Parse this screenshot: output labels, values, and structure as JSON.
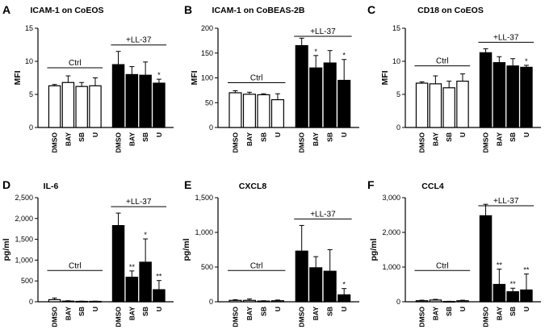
{
  "chart_data": [
    {
      "type": "bar",
      "panel_label": "A",
      "title": "ICAM-1 on CoEOS",
      "ylabel": "MFI",
      "ylim": [
        0,
        15
      ],
      "yticks": [
        "0",
        "5",
        "10",
        "15"
      ],
      "categories": [
        "DMSO",
        "BAY",
        "SB",
        "U",
        "DMSO",
        "BAY",
        "SB",
        "U"
      ],
      "groups": [
        {
          "name": "Ctrl",
          "start": 0,
          "end": 3,
          "fill": "#ffffff"
        },
        {
          "name": "+LL-37",
          "start": 4,
          "end": 7,
          "fill": "#000000"
        }
      ],
      "values": [
        6.3,
        6.8,
        6.2,
        6.3,
        9.5,
        8.0,
        7.9,
        6.7
      ],
      "errors": [
        0.2,
        1.0,
        0.6,
        1.2,
        2.0,
        1.2,
        2.0,
        0.6
      ],
      "significance": [
        "",
        "",
        "",
        "",
        "",
        "",
        "",
        "*"
      ]
    },
    {
      "type": "bar",
      "panel_label": "B",
      "title": "ICAM-1 on CoBEAS-2B",
      "ylabel": "MFI",
      "ylim": [
        0,
        200
      ],
      "yticks": [
        "0",
        "50",
        "100",
        "150",
        "200"
      ],
      "categories": [
        "DMSO",
        "BAY",
        "SB",
        "U",
        "DMSO",
        "BAY",
        "SB",
        "U"
      ],
      "groups": [
        {
          "name": "Ctrl",
          "start": 0,
          "end": 3,
          "fill": "#ffffff"
        },
        {
          "name": "+LL-37",
          "start": 4,
          "end": 7,
          "fill": "#000000"
        }
      ],
      "values": [
        70,
        67,
        66,
        56,
        165,
        120,
        130,
        95
      ],
      "errors": [
        4,
        4,
        2,
        12,
        15,
        25,
        25,
        42
      ],
      "significance": [
        "",
        "",
        "",
        "",
        "",
        "*",
        "",
        "*"
      ]
    },
    {
      "type": "bar",
      "panel_label": "C",
      "title": "CD18 on CoEOS",
      "ylabel": "MFI",
      "ylim": [
        0,
        15
      ],
      "yticks": [
        "0",
        "5",
        "10",
        "15"
      ],
      "categories": [
        "DMSO",
        "BAY",
        "SB",
        "U",
        "DMSO",
        "BAY",
        "SB",
        "U"
      ],
      "groups": [
        {
          "name": "Ctrl",
          "start": 0,
          "end": 3,
          "fill": "#ffffff"
        },
        {
          "name": "+LL-37",
          "start": 4,
          "end": 7,
          "fill": "#000000"
        }
      ],
      "values": [
        6.7,
        6.6,
        6.0,
        7.0,
        11.3,
        9.8,
        9.3,
        9.1
      ],
      "errors": [
        0.2,
        1.2,
        1.0,
        1.1,
        0.6,
        0.9,
        1.1,
        0.3
      ],
      "significance": [
        "",
        "",
        "",
        "",
        "",
        "",
        "",
        "*"
      ]
    },
    {
      "type": "bar",
      "panel_label": "D",
      "title": "IL-6",
      "ylabel": "pg/ml",
      "ylim": [
        0,
        2500
      ],
      "yticks": [
        "0",
        "500",
        "1,000",
        "1,500",
        "2,000",
        "2,500"
      ],
      "categories": [
        "DMSO",
        "BAY",
        "SB",
        "U",
        "DMSO",
        "BAY",
        "SB",
        "U"
      ],
      "groups": [
        {
          "name": "Ctrl",
          "start": 0,
          "end": 3,
          "fill": "#ffffff"
        },
        {
          "name": "+LL-37",
          "start": 4,
          "end": 7,
          "fill": "#000000"
        }
      ],
      "values": [
        50,
        15,
        10,
        10,
        1830,
        590,
        950,
        290
      ],
      "errors": [
        40,
        10,
        5,
        5,
        300,
        150,
        560,
        220
      ],
      "significance": [
        "",
        "",
        "",
        "",
        "",
        "**",
        "*",
        "**"
      ]
    },
    {
      "type": "bar",
      "panel_label": "E",
      "title": "CXCL8",
      "ylabel": "pg/ml",
      "ylim": [
        0,
        1500
      ],
      "yticks": [
        "0",
        "500",
        "1,000",
        "1,500"
      ],
      "categories": [
        "DMSO",
        "BAY",
        "SB",
        "U",
        "DMSO",
        "BAY",
        "SB",
        "U"
      ],
      "groups": [
        {
          "name": "Ctrl",
          "start": 0,
          "end": 3,
          "fill": "#ffffff"
        },
        {
          "name": "+LL-37",
          "start": 4,
          "end": 7,
          "fill": "#000000"
        }
      ],
      "values": [
        20,
        20,
        10,
        15,
        730,
        490,
        440,
        100
      ],
      "errors": [
        10,
        20,
        5,
        10,
        370,
        160,
        310,
        90
      ],
      "significance": [
        "",
        "",
        "",
        "",
        "",
        "",
        "",
        "*"
      ]
    },
    {
      "type": "bar",
      "panel_label": "F",
      "title": "CCL4",
      "ylabel": "pg/ml",
      "ylim": [
        0,
        3000
      ],
      "yticks": [
        "0",
        "1,000",
        "2,000",
        "3,000"
      ],
      "categories": [
        "DMSO",
        "BAY",
        "SB",
        "U",
        "DMSO",
        "BAY",
        "SB",
        "U"
      ],
      "groups": [
        {
          "name": "Ctrl",
          "start": 0,
          "end": 3,
          "fill": "#ffffff"
        },
        {
          "name": "+LL-37",
          "start": 4,
          "end": 7,
          "fill": "#000000"
        }
      ],
      "values": [
        30,
        50,
        10,
        30,
        2480,
        500,
        290,
        340
      ],
      "errors": [
        15,
        20,
        5,
        15,
        330,
        440,
        100,
        460
      ],
      "significance": [
        "",
        "",
        "",
        "",
        "",
        "**",
        "**",
        "**"
      ]
    }
  ]
}
